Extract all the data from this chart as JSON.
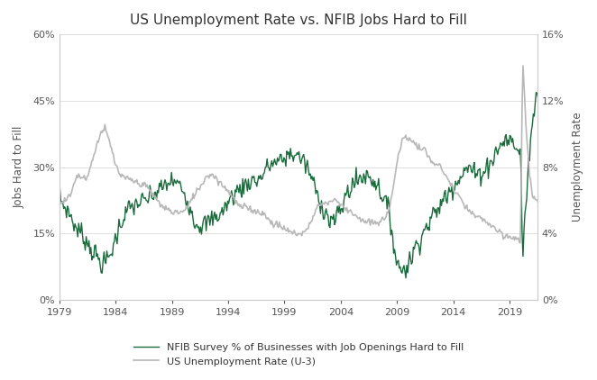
{
  "title": "US Unemployment Rate vs. NFIB Jobs Hard to Fill",
  "ylabel_left": "Jobs Hard to Fill",
  "ylabel_right": "Unemployment Rate",
  "legend_nfib": "NFIB Survey % of Businesses with Job Openings Hard to Fill",
  "legend_unemp": "US Unemployment Rate (U-3)",
  "nfib_color": "#1a6b3c",
  "unemp_color": "#b8b8b8",
  "background_color": "#ffffff",
  "xlim": [
    1979.0,
    2021.5
  ],
  "ylim_left": [
    0,
    60
  ],
  "ylim_right": [
    0,
    16
  ],
  "xticks": [
    1979,
    1984,
    1989,
    1994,
    1999,
    2004,
    2009,
    2014,
    2019
  ],
  "yticks_left": [
    0,
    15,
    30,
    45,
    60
  ],
  "yticks_right": [
    0,
    4,
    8,
    12,
    16
  ]
}
